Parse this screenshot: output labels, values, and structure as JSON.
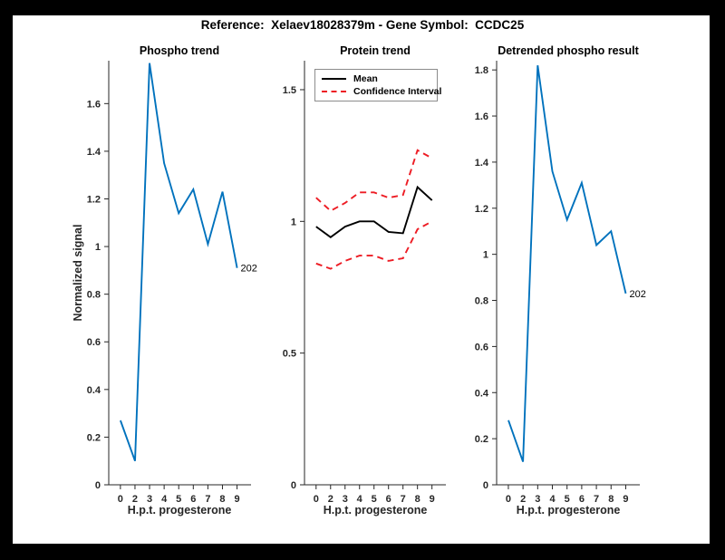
{
  "figure": {
    "title": "Reference:  Xelaev18028379m - Gene Symbol:  CCDC25",
    "background": "#000000",
    "canvas": "#ffffff"
  },
  "colors": {
    "blue": "#0072BD",
    "red": "#ED1C24",
    "black": "#000000",
    "axis": "#262626"
  },
  "chart_data": [
    {
      "type": "line",
      "title": "Phospho trend",
      "xlabel": "H.p.t. progesterone",
      "ylabel": "Normalized signal",
      "x": [
        0,
        2,
        3,
        4,
        5,
        6,
        7,
        8,
        9
      ],
      "xticklabels": [
        "0",
        "2",
        "3",
        "4",
        "5",
        "6",
        "7",
        "8",
        "9"
      ],
      "series": [
        {
          "name": "Phospho",
          "color": "#0072BD",
          "style": "solid",
          "values": [
            0.27,
            0.1,
            1.77,
            1.35,
            1.14,
            1.24,
            1.01,
            1.23,
            0.91
          ]
        }
      ],
      "yticks": [
        "0",
        "0.2",
        "0.4",
        "0.6",
        "0.8",
        "1",
        "1.2",
        "1.4",
        "1.6"
      ],
      "ylim": [
        0,
        1.78
      ],
      "endpoint_label": "202",
      "grid": false
    },
    {
      "type": "line",
      "title": "Protein trend",
      "xlabel": "H.p.t. progesterone",
      "ylabel": "",
      "x": [
        0,
        2,
        3,
        4,
        5,
        6,
        7,
        8,
        9
      ],
      "xticklabels": [
        "0",
        "2",
        "3",
        "4",
        "5",
        "6",
        "7",
        "8",
        "9"
      ],
      "series": [
        {
          "name": "Mean",
          "color": "#000000",
          "style": "solid",
          "values": [
            0.98,
            0.94,
            0.98,
            1.0,
            1.0,
            0.96,
            0.955,
            1.13,
            1.08
          ]
        },
        {
          "name": "CI upper",
          "color": "#ED1C24",
          "style": "dashed",
          "values": [
            1.09,
            1.04,
            1.07,
            1.11,
            1.11,
            1.09,
            1.1,
            1.27,
            1.24
          ]
        },
        {
          "name": "CI lower",
          "color": "#ED1C24",
          "style": "dashed",
          "values": [
            0.84,
            0.82,
            0.85,
            0.87,
            0.87,
            0.85,
            0.86,
            0.97,
            1.0
          ]
        }
      ],
      "legend": [
        {
          "label": "Mean",
          "color": "#000000",
          "style": "solid"
        },
        {
          "label": "Confidence Interval",
          "color": "#ED1C24",
          "style": "dashed"
        }
      ],
      "legend_position": "top-left",
      "yticks": [
        "0",
        "0.5",
        "1",
        "1.5"
      ],
      "ylim": [
        0,
        1.61
      ],
      "grid": false
    },
    {
      "type": "line",
      "title": "Detrended phospho result",
      "xlabel": "H.p.t. progesterone",
      "ylabel": "",
      "x": [
        0,
        2,
        3,
        4,
        5,
        6,
        7,
        8,
        9
      ],
      "xticklabels": [
        "0",
        "2",
        "3",
        "4",
        "5",
        "6",
        "7",
        "8",
        "9"
      ],
      "series": [
        {
          "name": "Detrended phospho",
          "color": "#0072BD",
          "style": "solid",
          "values": [
            0.28,
            0.1,
            1.82,
            1.36,
            1.15,
            1.31,
            1.04,
            1.1,
            0.83
          ]
        }
      ],
      "yticks": [
        "0",
        "0.2",
        "0.4",
        "0.6",
        "0.8",
        "1",
        "1.2",
        "1.4",
        "1.6",
        "1.8"
      ],
      "ylim": [
        0,
        1.84
      ],
      "endpoint_label": "202",
      "grid": false
    }
  ]
}
